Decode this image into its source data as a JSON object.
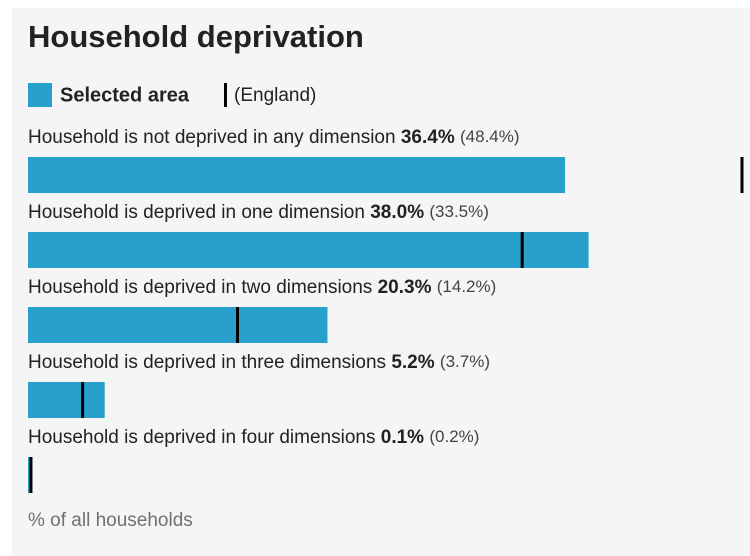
{
  "chart_data": {
    "type": "bar",
    "title": "Household deprivation",
    "categories": [
      "Household is not deprived in any dimension",
      "Household is deprived in one dimension",
      "Household is deprived in two dimensions",
      "Household is deprived in three dimensions",
      "Household is deprived in four dimensions"
    ],
    "series": [
      {
        "name": "Selected area",
        "color": "#27a0cc",
        "values": [
          36.4,
          38.0,
          20.3,
          5.2,
          0.1
        ],
        "value_labels": [
          "36.4%",
          "38.0%",
          "20.3%",
          "5.2%",
          "0.1%"
        ]
      },
      {
        "name": "(England)",
        "color": "#000000",
        "values": [
          48.4,
          33.5,
          14.2,
          3.7,
          0.2
        ],
        "value_labels": [
          "(48.4%)",
          "(33.5%)",
          "(14.2%)",
          "(3.7%)",
          "(0.2%)"
        ]
      }
    ],
    "xlim": [
      0,
      48.4
    ],
    "xlabel": "% of all households"
  }
}
